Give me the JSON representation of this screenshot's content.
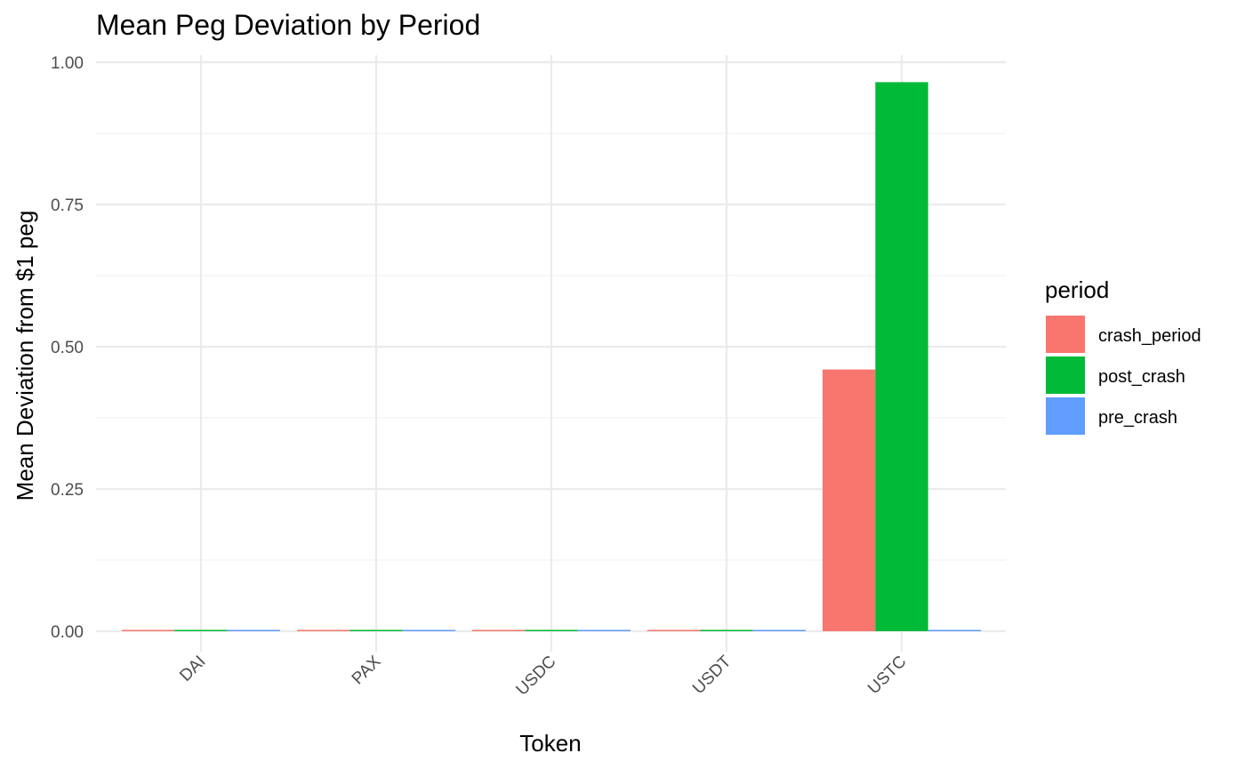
{
  "chart_data": {
    "type": "bar",
    "title": "Mean Peg Deviation by Period",
    "xlabel": "Token",
    "ylabel": "Mean Deviation from $1 peg",
    "categories": [
      "DAI",
      "PAX",
      "USDC",
      "USDT",
      "USTC"
    ],
    "series": [
      {
        "name": "crash_period",
        "color": "#F8766D",
        "values": [
          0.0005,
          0.001,
          0.0003,
          0.002,
          0.46
        ]
      },
      {
        "name": "post_crash",
        "color": "#00BA38",
        "values": [
          0.0005,
          0.002,
          0.0003,
          0.001,
          0.965
        ]
      },
      {
        "name": "pre_crash",
        "color": "#619CFF",
        "values": [
          0.0005,
          0.002,
          0.0003,
          0.0005,
          0.0005
        ]
      }
    ],
    "ylim": [
      0,
      1.0
    ],
    "yticks": [
      0.0,
      0.25,
      0.5,
      0.75,
      1.0
    ],
    "ytick_labels": [
      "0.00",
      "0.25",
      "0.50",
      "0.75",
      "1.00"
    ],
    "grid": true,
    "legend": {
      "title": "period",
      "position": "right"
    }
  }
}
